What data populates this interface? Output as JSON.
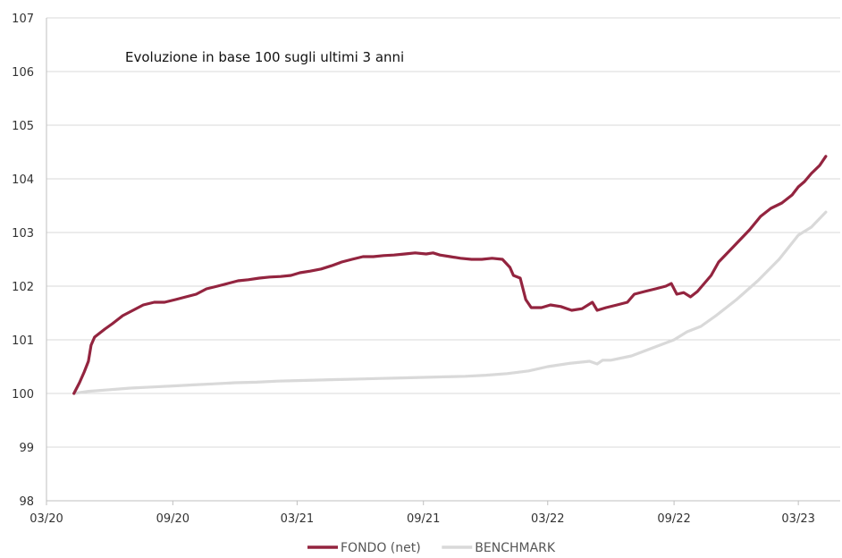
{
  "chart_data": {
    "type": "line",
    "title": "Evoluzione in base 100 sugli ultimi 3 anni",
    "xlabel": "",
    "ylabel": "",
    "ylim": [
      98,
      107
    ],
    "yticks": [
      "107",
      "106",
      "105",
      "104",
      "103",
      "102",
      "101",
      "100",
      "99",
      "98"
    ],
    "xlim": [
      "2020-03",
      "2023-05"
    ],
    "xticks": [
      {
        "label": "03/20",
        "date": "2020-03"
      },
      {
        "label": "09/20",
        "date": "2020-09"
      },
      {
        "label": "03/21",
        "date": "2021-03"
      },
      {
        "label": "09/21",
        "date": "2021-09"
      },
      {
        "label": "03/22",
        "date": "2022-03"
      },
      {
        "label": "09/22",
        "date": "2022-09"
      },
      {
        "label": "03/23",
        "date": "2023-03"
      }
    ],
    "grid": true,
    "legend_position": "bottom",
    "series": [
      {
        "name": "FONDO (net)",
        "color": "#93243f",
        "points": [
          [
            "2020-04-10",
            100.0
          ],
          [
            "2020-04-18",
            100.2
          ],
          [
            "2020-04-25",
            100.4
          ],
          [
            "2020-05-01",
            100.6
          ],
          [
            "2020-05-05",
            100.9
          ],
          [
            "2020-05-10",
            101.05
          ],
          [
            "2020-05-15",
            101.1
          ],
          [
            "2020-05-25",
            101.2
          ],
          [
            "2020-06-05",
            101.3
          ],
          [
            "2020-06-20",
            101.45
          ],
          [
            "2020-07-05",
            101.55
          ],
          [
            "2020-07-20",
            101.65
          ],
          [
            "2020-08-05",
            101.7
          ],
          [
            "2020-08-20",
            101.7
          ],
          [
            "2020-09-05",
            101.75
          ],
          [
            "2020-09-20",
            101.8
          ],
          [
            "2020-10-05",
            101.85
          ],
          [
            "2020-10-20",
            101.95
          ],
          [
            "2020-11-05",
            102.0
          ],
          [
            "2020-11-20",
            102.05
          ],
          [
            "2020-12-05",
            102.1
          ],
          [
            "2020-12-20",
            102.12
          ],
          [
            "2021-01-05",
            102.15
          ],
          [
            "2021-01-20",
            102.17
          ],
          [
            "2021-02-05",
            102.18
          ],
          [
            "2021-02-20",
            102.2
          ],
          [
            "2021-03-05",
            102.25
          ],
          [
            "2021-03-20",
            102.28
          ],
          [
            "2021-04-05",
            102.32
          ],
          [
            "2021-04-20",
            102.38
          ],
          [
            "2021-05-05",
            102.45
          ],
          [
            "2021-05-20",
            102.5
          ],
          [
            "2021-06-05",
            102.55
          ],
          [
            "2021-06-20",
            102.55
          ],
          [
            "2021-07-05",
            102.57
          ],
          [
            "2021-07-20",
            102.58
          ],
          [
            "2021-08-05",
            102.6
          ],
          [
            "2021-08-20",
            102.62
          ],
          [
            "2021-09-05",
            102.6
          ],
          [
            "2021-09-15",
            102.62
          ],
          [
            "2021-09-25",
            102.58
          ],
          [
            "2021-10-10",
            102.55
          ],
          [
            "2021-10-25",
            102.52
          ],
          [
            "2021-11-10",
            102.5
          ],
          [
            "2021-11-25",
            102.5
          ],
          [
            "2021-12-10",
            102.52
          ],
          [
            "2021-12-25",
            102.5
          ],
          [
            "2022-01-05",
            102.35
          ],
          [
            "2022-01-10",
            102.2
          ],
          [
            "2022-01-20",
            102.15
          ],
          [
            "2022-01-28",
            101.75
          ],
          [
            "2022-02-05",
            101.6
          ],
          [
            "2022-02-20",
            101.6
          ],
          [
            "2022-03-05",
            101.65
          ],
          [
            "2022-03-20",
            101.62
          ],
          [
            "2022-04-05",
            101.55
          ],
          [
            "2022-04-20",
            101.58
          ],
          [
            "2022-05-05",
            101.7
          ],
          [
            "2022-05-12",
            101.55
          ],
          [
            "2022-05-25",
            101.6
          ],
          [
            "2022-06-10",
            101.65
          ],
          [
            "2022-06-25",
            101.7
          ],
          [
            "2022-07-05",
            101.85
          ],
          [
            "2022-07-20",
            101.9
          ],
          [
            "2022-08-05",
            101.95
          ],
          [
            "2022-08-20",
            102.0
          ],
          [
            "2022-08-28",
            102.05
          ],
          [
            "2022-09-05",
            101.85
          ],
          [
            "2022-09-15",
            101.88
          ],
          [
            "2022-09-25",
            101.8
          ],
          [
            "2022-10-05",
            101.9
          ],
          [
            "2022-10-15",
            102.05
          ],
          [
            "2022-10-25",
            102.2
          ],
          [
            "2022-11-05",
            102.45
          ],
          [
            "2022-11-20",
            102.65
          ],
          [
            "2022-12-05",
            102.85
          ],
          [
            "2022-12-20",
            103.05
          ],
          [
            "2023-01-05",
            103.3
          ],
          [
            "2023-01-20",
            103.45
          ],
          [
            "2023-02-05",
            103.55
          ],
          [
            "2023-02-20",
            103.7
          ],
          [
            "2023-03-01",
            103.85
          ],
          [
            "2023-03-10",
            103.95
          ],
          [
            "2023-03-20",
            104.1
          ],
          [
            "2023-04-01",
            104.25
          ],
          [
            "2023-04-10",
            104.42
          ]
        ]
      },
      {
        "name": "BENCHMARK",
        "color": "#d9d9d9",
        "points": [
          [
            "2020-04-10",
            100.0
          ],
          [
            "2020-05-01",
            100.04
          ],
          [
            "2020-06-01",
            100.07
          ],
          [
            "2020-07-01",
            100.1
          ],
          [
            "2020-08-01",
            100.12
          ],
          [
            "2020-09-01",
            100.14
          ],
          [
            "2020-10-01",
            100.16
          ],
          [
            "2020-11-01",
            100.18
          ],
          [
            "2020-12-01",
            100.2
          ],
          [
            "2021-01-01",
            100.21
          ],
          [
            "2021-02-01",
            100.23
          ],
          [
            "2021-03-01",
            100.24
          ],
          [
            "2021-04-01",
            100.25
          ],
          [
            "2021-05-01",
            100.26
          ],
          [
            "2021-06-01",
            100.27
          ],
          [
            "2021-07-01",
            100.28
          ],
          [
            "2021-08-01",
            100.29
          ],
          [
            "2021-09-01",
            100.3
          ],
          [
            "2021-10-01",
            100.31
          ],
          [
            "2021-11-01",
            100.32
          ],
          [
            "2021-12-01",
            100.34
          ],
          [
            "2022-01-01",
            100.37
          ],
          [
            "2022-02-01",
            100.42
          ],
          [
            "2022-03-01",
            100.5
          ],
          [
            "2022-04-01",
            100.56
          ],
          [
            "2022-05-01",
            100.6
          ],
          [
            "2022-05-12",
            100.55
          ],
          [
            "2022-05-20",
            100.62
          ],
          [
            "2022-06-01",
            100.62
          ],
          [
            "2022-07-01",
            100.7
          ],
          [
            "2022-08-01",
            100.85
          ],
          [
            "2022-09-01",
            101.0
          ],
          [
            "2022-09-20",
            101.15
          ],
          [
            "2022-10-10",
            101.25
          ],
          [
            "2022-11-01",
            101.45
          ],
          [
            "2022-12-01",
            101.75
          ],
          [
            "2023-01-01",
            102.1
          ],
          [
            "2023-02-01",
            102.5
          ],
          [
            "2023-03-01",
            102.95
          ],
          [
            "2023-03-20",
            103.1
          ],
          [
            "2023-04-10",
            103.38
          ]
        ]
      }
    ]
  }
}
